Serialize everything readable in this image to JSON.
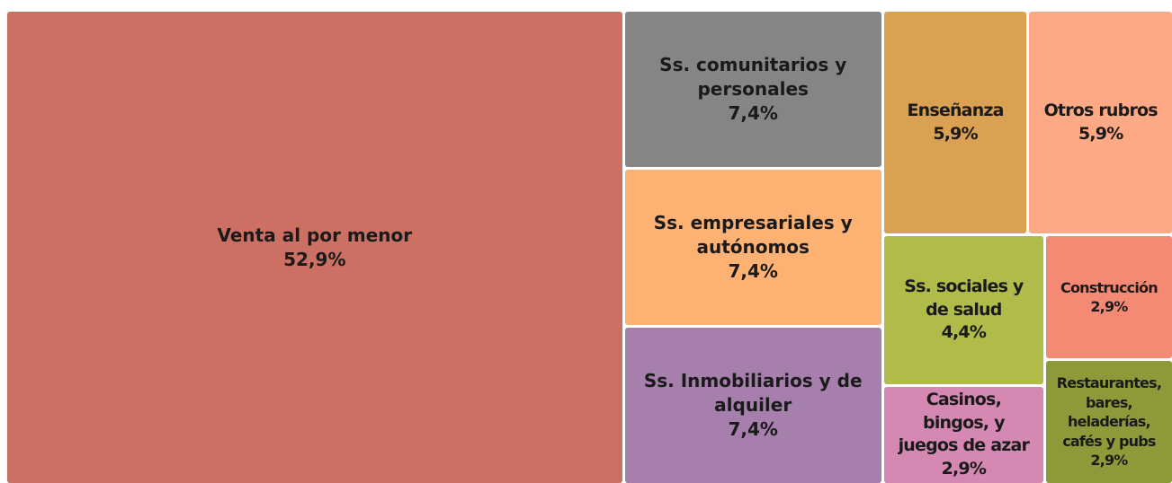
{
  "chart_data": {
    "type": "treemap",
    "categories": [
      "Venta al por menor",
      "Ss. comunitarios y personales",
      "Ss. empresariales y autónomos",
      "Ss. Inmobiliarios y de alquiler",
      "Enseñanza",
      "Otros rubros",
      "Ss. sociales y de salud",
      "Casinos, bingos, y juegos de azar",
      "Construcción",
      "Restaurantes, bares, heladerías, cafés y pubs"
    ],
    "values": [
      52.9,
      7.4,
      7.4,
      7.4,
      5.9,
      5.9,
      4.4,
      2.9,
      2.9,
      2.9
    ],
    "value_labels": [
      "52,9%",
      "7,4%",
      "7,4%",
      "7,4%",
      "5,9%",
      "5,9%",
      "4,4%",
      "2,9%",
      "2,9%",
      "2,9%"
    ],
    "colors": [
      "#cb7062",
      "#858585",
      "#fdb274",
      "#a67fad",
      "#d9a151",
      "#fea985",
      "#b0bb49",
      "#d588b1",
      "#f48a73",
      "#8e9a3a"
    ]
  }
}
